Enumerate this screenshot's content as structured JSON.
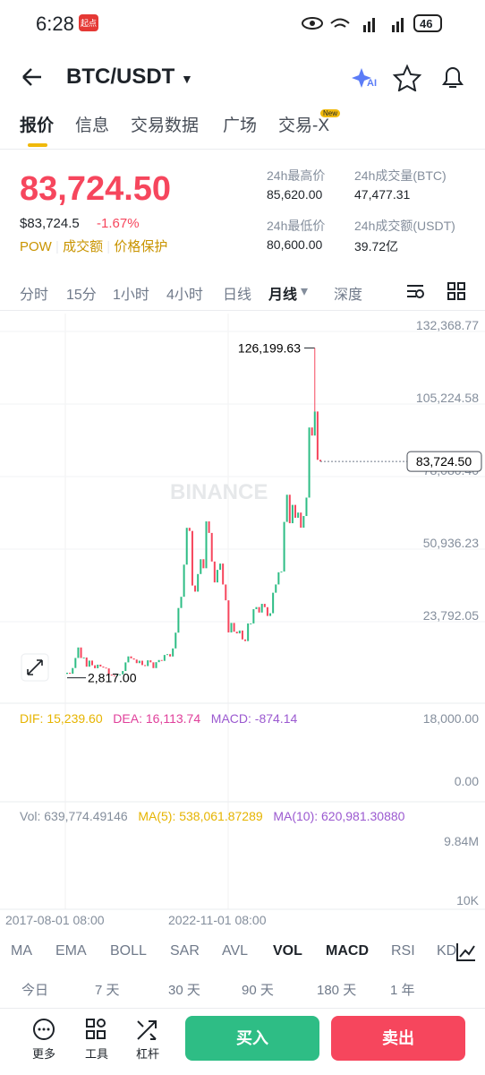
{
  "status_bar": {
    "time": "6:28",
    "badge": "起点",
    "battery": "46"
  },
  "header": {
    "pair": "BTC/USDT"
  },
  "tabs": [
    "报价",
    "信息",
    "交易数据",
    "广场",
    "交易-X"
  ],
  "new_badge": "New",
  "price": {
    "last": "83,724.50",
    "usd": "$83,724.5",
    "change": "-1.67%",
    "tags": [
      "POW",
      "成交额",
      "价格保护"
    ]
  },
  "stats": [
    {
      "label": "24h最高价",
      "value": "85,620.00"
    },
    {
      "label": "24h成交量(BTC)",
      "value": "47,477.31"
    },
    {
      "label": "24h最低价",
      "value": "80,600.00"
    },
    {
      "label": "24h成交额(USDT)",
      "value": "39.72亿"
    }
  ],
  "intervals": [
    "分时",
    "15分",
    "1小时",
    "4小时",
    "日线",
    "月线",
    "深度"
  ],
  "chart_data": {
    "type": "candlestick",
    "watermark": "BINANCE",
    "ylim": [
      -6703,
      139071
    ],
    "yticks": [
      {
        "value": 132368.77,
        "label": "132,368.77"
      },
      {
        "value": 105224.58,
        "label": "105,224.58"
      },
      {
        "value": 78080.4,
        "label": "78,080.40"
      },
      {
        "value": 50936.23,
        "label": "50,936.23"
      },
      {
        "value": 23792.05,
        "label": "23,792.05"
      }
    ],
    "x_labels": [
      "2017-08-01 08:00",
      "2022-11-01 08:00"
    ],
    "first_open": 4261,
    "closes": [
      4703,
      4339,
      6468,
      10233,
      14156,
      10221,
      10397,
      6973,
      9246,
      7494,
      6391,
      7730,
      7025,
      6625,
      6317,
      4017,
      3742,
      3457,
      3854,
      4105,
      5350,
      8574,
      10817,
      10085,
      9630,
      8293,
      9199,
      7569,
      7193,
      9350,
      8599,
      6438,
      8658,
      9461,
      9137,
      11351,
      11655,
      10779,
      13804,
      19698,
      28923,
      33114,
      45137,
      58918,
      57750,
      37332,
      35040,
      41626,
      47166,
      43790,
      61318,
      57005,
      46306,
      38483,
      43193,
      45538,
      37714,
      31792,
      19785,
      23336,
      20050,
      19423,
      20495,
      17168,
      16547,
      23139,
      23147,
      28478,
      29268,
      27219,
      30477,
      29230,
      25941,
      26962,
      34639,
      37724,
      42283,
      42580,
      61130,
      71291,
      60636,
      67491,
      62678,
      64619,
      58973,
      63329,
      70215,
      96449,
      93429,
      102429,
      84350,
      83724.5
    ],
    "high": {
      "value": 126199.63,
      "label": "126,199.63"
    },
    "low": {
      "value": 2817,
      "label": "2,817.00"
    },
    "last_price": {
      "value": 83724.5,
      "label": "83,724.50"
    },
    "up_color": "#2ebd85",
    "down_color": "#f6465d"
  },
  "macd": {
    "dif": "DIF: 15,239.60",
    "dea": "DEA: 16,113.74",
    "macd": "MACD: -874.14",
    "ticks": [
      "18,000.00",
      "0.00"
    ]
  },
  "volume": {
    "vol": "Vol: 639,774.49146",
    "ma5": "MA(5): 538,061.87289",
    "ma10": "MA(10): 620,981.30880",
    "ticks": [
      "9.84M",
      "10K"
    ]
  },
  "indicators": [
    "MA",
    "EMA",
    "BOLL",
    "SAR",
    "AVL",
    "VOL",
    "MACD",
    "RSI",
    "KD"
  ],
  "periods": [
    "今日",
    "7 天",
    "30 天",
    "90 天",
    "180 天",
    "1 年"
  ],
  "bottom": {
    "tools": [
      "更多",
      "工具",
      "杠杆"
    ],
    "buy": "买入",
    "sell": "卖出"
  }
}
